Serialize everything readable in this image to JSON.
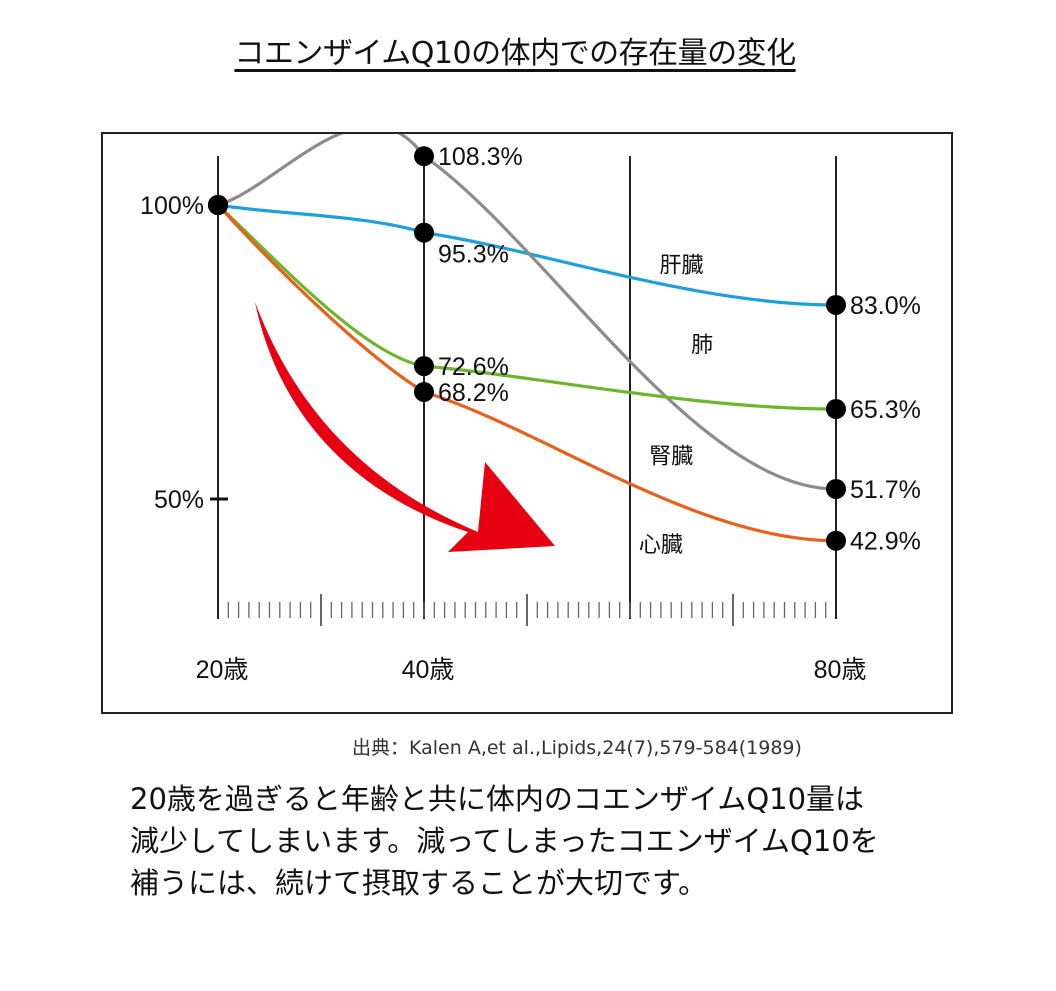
{
  "title": "コエンザイムQ10の体内での存在量の変化",
  "chart_data": {
    "type": "line",
    "title": "コエンザイムQ10の体内での存在量の変化",
    "x": [
      20,
      40,
      80
    ],
    "x_tick_labels": [
      "20歳",
      "40歳",
      "80歳"
    ],
    "y_tick_labels": [
      "100%",
      "50%"
    ],
    "y_ticks": [
      100,
      50
    ],
    "xlim": [
      20,
      80
    ],
    "series": [
      {
        "name": "肝臓",
        "color": "#1ea0dc",
        "values": [
          100,
          95.3,
          83.0
        ],
        "labels": [
          "",
          "95.3%",
          "83.0%"
        ]
      },
      {
        "name": "肺",
        "color": "#8c8c8c",
        "values": [
          100,
          108.3,
          51.7
        ],
        "labels": [
          "100%",
          "108.3%",
          "51.7%"
        ]
      },
      {
        "name": "腎臓",
        "color": "#6cb52d",
        "values": [
          100,
          72.6,
          65.3
        ],
        "labels": [
          "",
          "72.6%",
          "65.3%"
        ]
      },
      {
        "name": "心臓",
        "color": "#e8601c",
        "values": [
          100,
          68.2,
          42.9
        ],
        "labels": [
          "",
          "68.2%",
          "42.9%"
        ]
      }
    ],
    "arrow_color": "#e60012",
    "grid": "vertical lines at 20, 40, 60, 80"
  },
  "source": "出典：Kalen A,et al.,Lipids,24(7),579-584(1989)",
  "caption": [
    "20歳を過ぎると年齢と共に体内のコエンザイムQ10量は",
    "減少してしまいます。減ってしまったコエンザイムQ10を",
    "補うには、続けて摂取することが大切です。"
  ]
}
